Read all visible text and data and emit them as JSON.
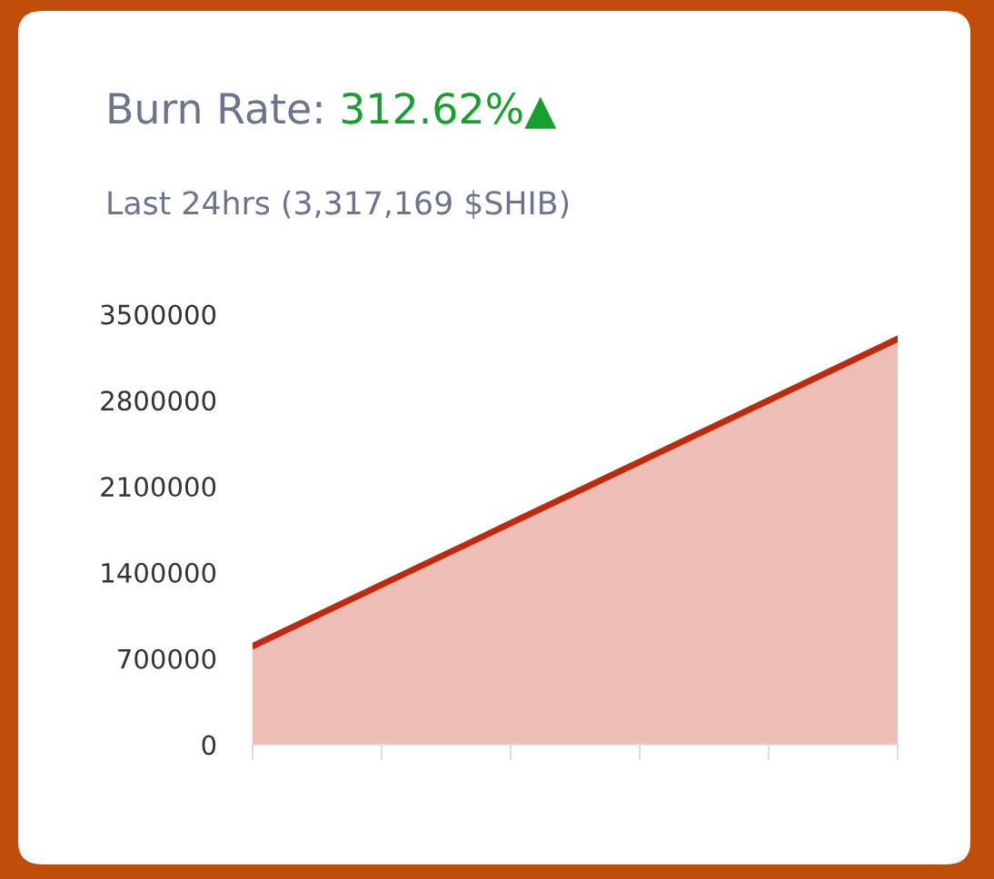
{
  "chart_data": {
    "type": "area",
    "title": [
      "Burn Rate: ",
      "312.62%▲"
    ],
    "subtitle": "Last 24hrs (3,317,169 $SHIB)",
    "categories": [
      null,
      null,
      null,
      null,
      null,
      null
    ],
    "series": [
      {
        "color": "#c0290c",
        "values": [
          800000,
          1300000,
          1800000,
          2300000,
          2800000,
          3300000
        ]
      }
    ],
    "ylim": [
      0,
      3500000
    ],
    "yticks": [
      0,
      700000,
      1400000,
      2100000,
      2800000,
      3500000
    ],
    "grid": false,
    "legend": false
  }
}
